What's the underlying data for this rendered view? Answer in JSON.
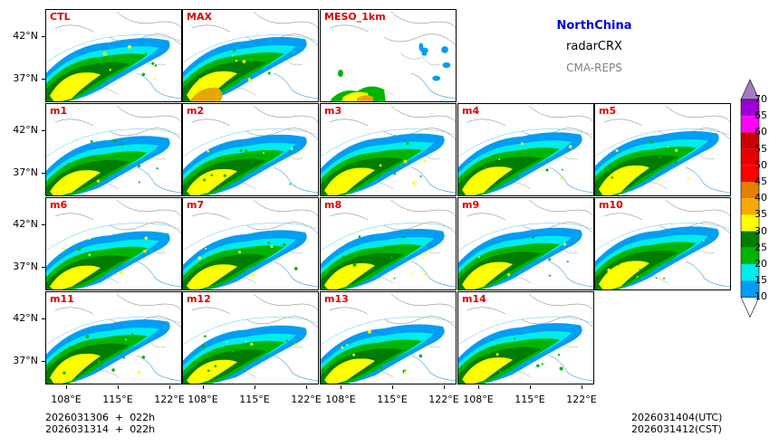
{
  "header": {
    "region": "NorthChina",
    "variable": "radarCRX",
    "system": "CMA-REPS",
    "region_color": "#0000dd",
    "system_color": "#808080"
  },
  "panels": [
    {
      "label": "CTL",
      "kind": "ens"
    },
    {
      "label": "MAX",
      "kind": "max"
    },
    {
      "label": "MESO_1km",
      "kind": "meso"
    },
    {
      "label": "m1",
      "kind": "ens"
    },
    {
      "label": "m2",
      "kind": "ens"
    },
    {
      "label": "m3",
      "kind": "ens"
    },
    {
      "label": "m4",
      "kind": "ens"
    },
    {
      "label": "m5",
      "kind": "ens"
    },
    {
      "label": "m6",
      "kind": "ens"
    },
    {
      "label": "m7",
      "kind": "ens"
    },
    {
      "label": "m8",
      "kind": "ens"
    },
    {
      "label": "m9",
      "kind": "ens"
    },
    {
      "label": "m10",
      "kind": "ens"
    },
    {
      "label": "m11",
      "kind": "ens"
    },
    {
      "label": "m12",
      "kind": "ens"
    },
    {
      "label": "m13",
      "kind": "ens"
    },
    {
      "label": "m14",
      "kind": "ens"
    }
  ],
  "axes": {
    "lat_labels": [
      "42°N",
      "37°N"
    ],
    "lon_labels": [
      "108°E",
      "115°E",
      "122°E"
    ]
  },
  "colorbar": {
    "levels": [
      "70",
      "65",
      "60",
      "55",
      "50",
      "45",
      "40",
      "35",
      "30",
      "25",
      "20",
      "15",
      "10"
    ],
    "colors": [
      "#9d00d6",
      "#ff00ff",
      "#c80000",
      "#e60000",
      "#ff0000",
      "#e48000",
      "#f8a800",
      "#ffff00",
      "#007d00",
      "#00b400",
      "#00ecec",
      "#009ef5",
      "#a07cc8"
    ]
  },
  "footer": {
    "init_utc": "2026031306  +  022h",
    "init_cst": "2026031314  +  022h",
    "valid_utc": "2026031404(UTC)",
    "valid_cst": "2026031412(CST)"
  }
}
